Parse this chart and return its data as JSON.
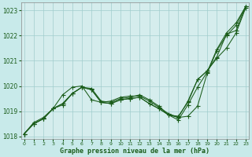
{
  "xlabel": "Graphe pression niveau de la mer (hPa)",
  "background_color": "#c8eaea",
  "plot_bg_color": "#d5eded",
  "grid_color": "#a0cccc",
  "line_color": "#1a5c1a",
  "hours": [
    0,
    1,
    2,
    3,
    4,
    5,
    6,
    7,
    8,
    9,
    10,
    11,
    12,
    13,
    14,
    15,
    16,
    17,
    18,
    19,
    20,
    21,
    22,
    23
  ],
  "series1": [
    1018.1,
    1018.55,
    1018.75,
    1019.1,
    1019.65,
    1019.95,
    1020.0,
    1019.45,
    1019.35,
    1019.4,
    1019.55,
    1019.6,
    1019.6,
    1019.4,
    1019.15,
    1018.9,
    1018.75,
    1019.4,
    1020.25,
    1020.6,
    1021.1,
    1021.5,
    1022.1,
    1023.1
  ],
  "series2": [
    1018.1,
    1018.5,
    1018.7,
    1019.1,
    1019.3,
    1019.7,
    1019.95,
    1019.85,
    1019.35,
    1019.3,
    1019.45,
    1019.5,
    1019.55,
    1019.3,
    1019.1,
    1018.85,
    1018.75,
    1018.8,
    1019.2,
    1020.5,
    1021.4,
    1022.0,
    1022.4,
    1023.15
  ],
  "series3": [
    1018.1,
    1018.5,
    1018.7,
    1019.1,
    1019.3,
    1019.7,
    1019.95,
    1019.85,
    1019.35,
    1019.3,
    1019.45,
    1019.5,
    1019.55,
    1019.3,
    1019.1,
    1018.85,
    1018.65,
    1019.25,
    1019.95,
    1020.55,
    1021.45,
    1022.1,
    1022.5,
    1023.15
  ],
  "series4": [
    1018.1,
    1018.5,
    1018.7,
    1019.1,
    1019.25,
    1019.7,
    1019.95,
    1019.9,
    1019.4,
    1019.35,
    1019.5,
    1019.55,
    1019.65,
    1019.45,
    1019.2,
    1018.85,
    1018.8,
    1019.35,
    1020.25,
    1020.6,
    1021.15,
    1022.05,
    1022.2,
    1023.15
  ],
  "ylim": [
    1017.9,
    1023.3
  ],
  "yticks": [
    1018,
    1019,
    1020,
    1021,
    1022,
    1023
  ],
  "xticks": [
    0,
    1,
    2,
    3,
    4,
    5,
    6,
    7,
    8,
    9,
    10,
    11,
    12,
    13,
    14,
    15,
    16,
    17,
    18,
    19,
    20,
    21,
    22,
    23
  ]
}
